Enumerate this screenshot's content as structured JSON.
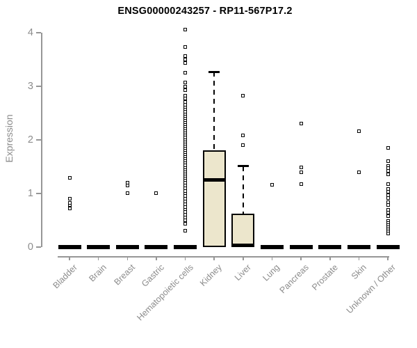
{
  "chart_data": {
    "type": "boxplot",
    "title": "ENSG00000243257 - RP11-567P17.2",
    "ylabel": "Expression",
    "ylim": [
      0,
      4
    ],
    "yticks": [
      "0",
      "1",
      "2",
      "3",
      "4"
    ],
    "grid": false,
    "legend": null,
    "categories": [
      "Bladder",
      "Brain",
      "Breast",
      "Gastric",
      "Hematopoietic cells",
      "Kidney",
      "Liver",
      "Lung",
      "Pancreas",
      "Prostate",
      "Skin",
      "Unknown / Other"
    ],
    "boxes": [
      {
        "category": "Bladder",
        "q1": 0,
        "median": 0,
        "q3": 0,
        "whisker_low": 0,
        "whisker_high": 0,
        "outliers": [
          0.72,
          0.78,
          0.82,
          0.9,
          1.29
        ]
      },
      {
        "category": "Brain",
        "q1": 0,
        "median": 0,
        "q3": 0,
        "whisker_low": 0,
        "whisker_high": 0,
        "outliers": []
      },
      {
        "category": "Breast",
        "q1": 0,
        "median": 0,
        "q3": 0,
        "whisker_low": 0,
        "whisker_high": 0,
        "outliers": [
          1.01,
          1.15,
          1.2
        ]
      },
      {
        "category": "Gastric",
        "q1": 0,
        "median": 0,
        "q3": 0,
        "whisker_low": 0,
        "whisker_high": 0,
        "outliers": [
          1.01
        ]
      },
      {
        "category": "Hematopoietic cells",
        "q1": 0,
        "median": 0,
        "q3": 0,
        "whisker_low": 0,
        "whisker_high": 0,
        "outliers": [
          4.06,
          3.74,
          3.57,
          3.5,
          3.44,
          3.25,
          3.07,
          3.0,
          2.93,
          2.83,
          2.77,
          2.71,
          2.65,
          2.6,
          2.56,
          2.52,
          2.48,
          2.44,
          2.4,
          2.36,
          2.32,
          2.28,
          2.24,
          2.2,
          2.16,
          2.12,
          2.08,
          2.04,
          2.0,
          1.96,
          1.92,
          1.88,
          1.84,
          1.8,
          1.76,
          1.72,
          1.68,
          1.64,
          1.6,
          1.56,
          1.52,
          1.48,
          1.44,
          1.4,
          1.36,
          1.32,
          1.28,
          1.24,
          1.2,
          1.15,
          1.1,
          1.05,
          1.0,
          0.95,
          0.9,
          0.85,
          0.8,
          0.75,
          0.7,
          0.65,
          0.6,
          0.55,
          0.5,
          0.43,
          0.3
        ]
      },
      {
        "category": "Kidney",
        "q1": 0,
        "median": 1.25,
        "q3": 1.81,
        "whisker_low": 0,
        "whisker_high": 3.27,
        "outliers": []
      },
      {
        "category": "Liver",
        "q1": 0,
        "median": 0.03,
        "q3": 0.62,
        "whisker_low": 0,
        "whisker_high": 1.51,
        "outliers": [
          1.9,
          2.08,
          2.83
        ]
      },
      {
        "category": "Lung",
        "q1": 0,
        "median": 0,
        "q3": 0,
        "whisker_low": 0,
        "whisker_high": 0,
        "outliers": [
          1.16
        ]
      },
      {
        "category": "Pancreas",
        "q1": 0,
        "median": 0,
        "q3": 0,
        "whisker_low": 0,
        "whisker_high": 0,
        "outliers": [
          1.17,
          1.4,
          1.49,
          2.31
        ]
      },
      {
        "category": "Prostate",
        "q1": 0,
        "median": 0,
        "q3": 0,
        "whisker_low": 0,
        "whisker_high": 0,
        "outliers": []
      },
      {
        "category": "Skin",
        "q1": 0,
        "median": 0,
        "q3": 0,
        "whisker_low": 0,
        "whisker_high": 0,
        "outliers": [
          1.39,
          2.16
        ]
      },
      {
        "category": "Unknown / Other",
        "q1": 0,
        "median": 0,
        "q3": 0,
        "whisker_low": 0,
        "whisker_high": 0,
        "outliers": [
          1.85,
          1.6,
          1.51,
          1.47,
          1.42,
          1.36,
          1.18,
          1.08,
          1.03,
          0.97,
          0.91,
          0.84,
          0.78,
          0.69,
          0.64,
          0.58,
          0.49,
          0.45,
          0.41,
          0.37,
          0.33,
          0.29,
          0.25
        ]
      }
    ],
    "colors": {
      "box_fill": "#ece6cc",
      "box_border": "#000000",
      "median": "#000000",
      "outlier": "#000000",
      "axis": "#969696",
      "tick_text": "#8c8c8c",
      "title_text": "#000000",
      "background": "#ffffff"
    }
  }
}
